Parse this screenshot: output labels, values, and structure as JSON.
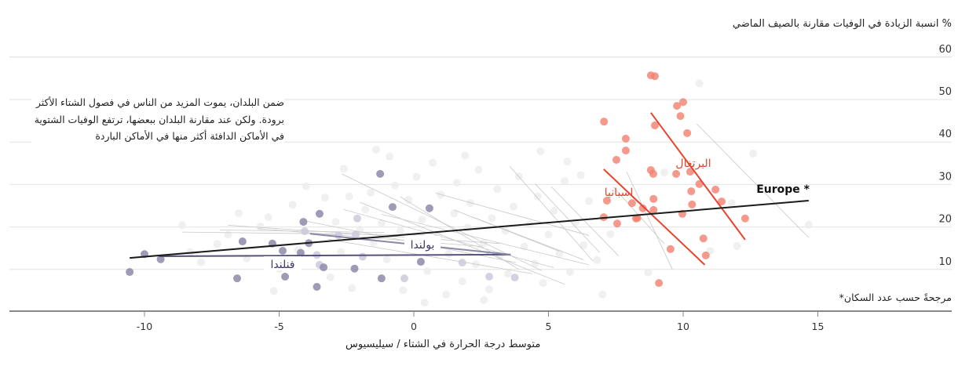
{
  "chart_data": {
    "type": "scatter",
    "ylabel": "% انسبة الزيادة في الوفيات مقارنة بالصيف الماضي",
    "xlabel": "متوسط درجة الحرارة في الشتاء / سيليسيوس",
    "xlim": [
      -15,
      20
    ],
    "ylim": [
      0,
      65
    ],
    "xticks": [
      -10,
      -5,
      0,
      5,
      10,
      15
    ],
    "xtick_labels": [
      "-10",
      "-5",
      "0",
      "5",
      "10",
      "15"
    ],
    "yticks": [
      10,
      20,
      30,
      40,
      50,
      60
    ],
    "ytick_labels": [
      "10",
      "20",
      "30",
      "40",
      "50",
      "60"
    ],
    "grid": true,
    "annotation": "ضمن البلدان، يموت المزيد من الناس في فصول الشتاء الأكثر برودة. ولكن عند مقارنة البلدان ببعضها، ترتفع الوفيات الشتوية في الأماكن الدافئة أكثر منها في الأماكن الباردة",
    "footnote": "مرجحةً حسب عدد السكان*",
    "colors": {
      "red_point": "#f1806e",
      "red_line": "#e8432e",
      "purple_point": "#8d8aa9",
      "purple_light": "#c9c7da",
      "purple_line": "#55527c",
      "grey_point": "#ededed",
      "grey_line": "#c8c8c8",
      "europe_line": "#1a1a1a"
    },
    "series": [
      {
        "name": "Europe *",
        "type": "trend",
        "line": [
          [
            -10.55,
            12.7
          ],
          [
            14.66,
            26.2
          ]
        ]
      },
      {
        "name": "البرتغال",
        "type": "trend",
        "line": [
          [
            8.8,
            46.9
          ],
          [
            12.3,
            17.0
          ]
        ]
      },
      {
        "name": "اسبانيا",
        "type": "trend",
        "line": [
          [
            7.05,
            33.6
          ],
          [
            10.8,
            11.1
          ]
        ]
      },
      {
        "name": "فنلندا",
        "type": "trend",
        "line": [
          [
            -9.45,
            13.1
          ],
          [
            3.6,
            13.5
          ]
        ]
      },
      {
        "name": "بولندا",
        "type": "trend",
        "line": [
          [
            -3.85,
            18.4
          ],
          [
            3.6,
            13.5
          ]
        ]
      },
      {
        "name": "Spain/Portugal points",
        "type": "points",
        "points": [
          [
            8.8,
            55.7
          ],
          [
            8.95,
            55.5
          ],
          [
            9.77,
            48.5
          ],
          [
            10.0,
            49.4
          ],
          [
            9.9,
            46.1
          ],
          [
            8.95,
            43.9
          ],
          [
            10.15,
            42.1
          ],
          [
            7.06,
            44.8
          ],
          [
            7.87,
            40.8
          ],
          [
            7.87,
            38.0
          ],
          [
            7.52,
            35.8
          ],
          [
            8.8,
            33.4
          ],
          [
            8.89,
            32.5
          ],
          [
            9.74,
            32.5
          ],
          [
            10.26,
            33.0
          ],
          [
            10.6,
            30.1
          ],
          [
            10.3,
            28.4
          ],
          [
            11.2,
            28.8
          ],
          [
            10.33,
            25.3
          ],
          [
            11.43,
            26.0
          ],
          [
            8.9,
            26.6
          ],
          [
            8.9,
            24.0
          ],
          [
            7.17,
            26.2
          ],
          [
            8.5,
            24.4
          ],
          [
            8.25,
            22.0
          ],
          [
            7.05,
            22.3
          ],
          [
            7.55,
            20.8
          ],
          [
            12.3,
            22.0
          ],
          [
            9.97,
            23.1
          ],
          [
            10.75,
            17.3
          ],
          [
            10.84,
            13.3
          ],
          [
            9.53,
            14.8
          ],
          [
            9.1,
            6.8
          ],
          [
            8.3,
            22.1
          ],
          [
            8.1,
            25.6
          ]
        ]
      },
      {
        "name": "Finland/Poland points",
        "type": "points",
        "points": [
          [
            -10.55,
            9.4
          ],
          [
            -10.0,
            13.6
          ],
          [
            -9.4,
            12.4
          ],
          [
            -6.36,
            16.6
          ],
          [
            -6.56,
            7.9
          ],
          [
            -5.25,
            16.1
          ],
          [
            -4.1,
            21.2
          ],
          [
            -3.5,
            23.1
          ],
          [
            -4.78,
            8.3
          ],
          [
            -3.9,
            16.2
          ],
          [
            -4.87,
            14.4
          ],
          [
            -3.35,
            10.5
          ],
          [
            -3.6,
            5.9
          ],
          [
            -1.2,
            7.9
          ],
          [
            -1.25,
            32.5
          ],
          [
            -0.79,
            24.7
          ],
          [
            0.58,
            24.4
          ],
          [
            0.26,
            11.8
          ],
          [
            -4.2,
            13.9
          ],
          [
            -2.2,
            10.2
          ]
        ]
      },
      {
        "name": "Finland/Poland light points",
        "type": "points",
        "points": [
          [
            -2.16,
            18.2
          ],
          [
            -2.8,
            18.0
          ],
          [
            -1.9,
            13.0
          ],
          [
            -0.35,
            7.9
          ],
          [
            1.8,
            11.6
          ],
          [
            2.8,
            8.3
          ],
          [
            3.75,
            8.1
          ],
          [
            -3.6,
            13.4
          ],
          [
            -2.1,
            22.0
          ],
          [
            0.6,
            15.2
          ],
          [
            -3.5,
            11.1
          ],
          [
            -4.05,
            19.0
          ]
        ]
      },
      {
        "name": "Other countries points",
        "type": "points",
        "points": [
          [
            -8.6,
            20.4
          ],
          [
            -7.3,
            16.0
          ],
          [
            -6.9,
            18.2
          ],
          [
            -6.2,
            12.6
          ],
          [
            -5.7,
            20.1
          ],
          [
            -5.4,
            22.3
          ],
          [
            -5.0,
            10.1
          ],
          [
            -4.5,
            25.2
          ],
          [
            -4.3,
            14.6
          ],
          [
            -3.3,
            26.9
          ],
          [
            -3.1,
            8.2
          ],
          [
            -2.9,
            21.2
          ],
          [
            -2.7,
            14.1
          ],
          [
            -2.6,
            33.7
          ],
          [
            -2.4,
            27.2
          ],
          [
            -2.3,
            5.6
          ],
          [
            -2.0,
            19.4
          ],
          [
            -1.8,
            24.1
          ],
          [
            -1.6,
            28.1
          ],
          [
            -1.5,
            16.3
          ],
          [
            -1.2,
            20.9
          ],
          [
            -1.0,
            12.4
          ],
          [
            -0.9,
            36.6
          ],
          [
            -0.7,
            29.8
          ],
          [
            -0.5,
            19.1
          ],
          [
            -0.4,
            5.1
          ],
          [
            -0.2,
            26.4
          ],
          [
            0.0,
            15.6
          ],
          [
            0.1,
            31.8
          ],
          [
            0.3,
            21.7
          ],
          [
            0.5,
            9.6
          ],
          [
            0.7,
            35.1
          ],
          [
            0.9,
            18.0
          ],
          [
            1.0,
            27.6
          ],
          [
            1.2,
            4.1
          ],
          [
            1.3,
            13.7
          ],
          [
            1.5,
            23.2
          ],
          [
            1.6,
            30.4
          ],
          [
            1.8,
            7.2
          ],
          [
            2.0,
            19.8
          ],
          [
            2.1,
            25.6
          ],
          [
            2.3,
            11.2
          ],
          [
            2.4,
            33.5
          ],
          [
            2.6,
            16.2
          ],
          [
            2.8,
            5.3
          ],
          [
            2.9,
            22.1
          ],
          [
            3.1,
            28.9
          ],
          [
            3.2,
            13.3
          ],
          [
            3.4,
            19.1
          ],
          [
            3.5,
            9.0
          ],
          [
            3.7,
            24.8
          ],
          [
            3.9,
            31.9
          ],
          [
            4.1,
            15.4
          ],
          [
            4.3,
            20.6
          ],
          [
            4.5,
            11.4
          ],
          [
            4.6,
            27.2
          ],
          [
            4.8,
            6.8
          ],
          [
            5.0,
            18.2
          ],
          [
            5.2,
            23.8
          ],
          [
            5.4,
            13.7
          ],
          [
            5.6,
            30.8
          ],
          [
            5.8,
            9.4
          ],
          [
            6.0,
            21.1
          ],
          [
            6.3,
            15.7
          ],
          [
            6.5,
            26.1
          ],
          [
            6.8,
            12.2
          ],
          [
            7.0,
            4.1
          ],
          [
            7.3,
            18.3
          ],
          [
            -7.9,
            11.7
          ],
          [
            -8.3,
            14.1
          ],
          [
            -6.5,
            23.2
          ],
          [
            -4.0,
            29.6
          ],
          [
            -1.4,
            38.2
          ],
          [
            1.9,
            36.8
          ],
          [
            4.7,
            37.8
          ],
          [
            -5.2,
            4.9
          ],
          [
            0.4,
            2.2
          ],
          [
            2.6,
            2.8
          ],
          [
            10.6,
            53.8
          ],
          [
            12.6,
            37.3
          ],
          [
            14.66,
            20.5
          ],
          [
            11.8,
            25.6
          ],
          [
            11.0,
            14.4
          ],
          [
            12.0,
            15.5
          ],
          [
            9.3,
            32.8
          ],
          [
            8.7,
            9.3
          ],
          [
            6.2,
            32.2
          ],
          [
            5.7,
            35.4
          ]
        ]
      },
      {
        "name": "Other countries trends",
        "type": "trends",
        "lines": [
          [
            [
              -2.68,
              32.5
            ],
            [
              4.75,
              9.7
            ]
          ],
          [
            [
              -2.0,
              25.8
            ],
            [
              5.6,
              6.5
            ]
          ],
          [
            [
              0.8,
              28.0
            ],
            [
              6.5,
              18.0
            ]
          ],
          [
            [
              3.56,
              34.3
            ],
            [
              6.65,
              12.0
            ]
          ],
          [
            [
              4.5,
              30.2
            ],
            [
              6.9,
              14.0
            ]
          ],
          [
            [
              5.1,
              29.5
            ],
            [
              7.6,
              13.2
            ]
          ],
          [
            [
              -8.6,
              18.8
            ],
            [
              0.4,
              18.1
            ]
          ],
          [
            [
              -6.9,
              20.4
            ],
            [
              3.2,
              16.1
            ]
          ],
          [
            [
              -2.6,
              24.1
            ],
            [
              5.2,
              10.4
            ]
          ],
          [
            [
              -1.2,
              23.0
            ],
            [
              6.5,
              11.1
            ]
          ],
          [
            [
              -4.1,
              21.5
            ],
            [
              3.8,
              11.6
            ]
          ],
          [
            [
              -0.5,
              27.1
            ],
            [
              3.9,
              10.0
            ]
          ],
          [
            [
              10.5,
              44.3
            ],
            [
              14.66,
              17.5
            ]
          ],
          [
            [
              7.9,
              33.0
            ],
            [
              9.6,
              10.0
            ]
          ],
          [
            [
              7.4,
              29.5
            ],
            [
              9.3,
              16.0
            ]
          ],
          [
            [
              1.5,
              24.0
            ],
            [
              5.4,
              14.3
            ]
          ],
          [
            [
              -5.8,
              19.6
            ],
            [
              2.5,
              15.4
            ]
          ],
          [
            [
              -3.2,
              17.1
            ],
            [
              4.4,
              9.0
            ]
          ],
          [
            [
              -7.2,
              19.3
            ],
            [
              -1.1,
              18.7
            ]
          ],
          [
            [
              2.2,
              22.3
            ],
            [
              6.3,
              12.3
            ]
          ]
        ]
      }
    ],
    "labels": {
      "europe": "Europe *",
      "portugal": "البرتغال",
      "spain": "اسبانيا",
      "poland": "بولندا",
      "finland": "فنلندا"
    }
  }
}
